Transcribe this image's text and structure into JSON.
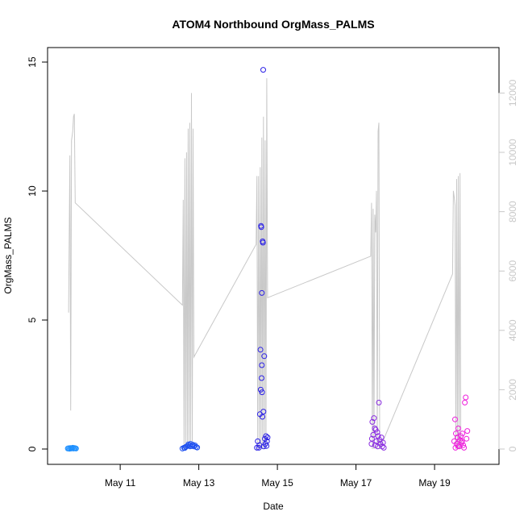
{
  "chart_data": {
    "type": "scatter",
    "title": "ATOM4 Northbound OrgMass_PALMS",
    "xlabel": "Date",
    "ylabel": "OrgMass_PALMS",
    "xlim": [
      "2018-05-09 12:00",
      "2018-05-20 06:00"
    ],
    "ylim": [
      0,
      15
    ],
    "y2lim": [
      0,
      12500
    ],
    "x_ticks": [
      {
        "value": "2018-05-11",
        "label": "May 11"
      },
      {
        "value": "2018-05-13",
        "label": "May 13"
      },
      {
        "value": "2018-05-15",
        "label": "May 15"
      },
      {
        "value": "2018-05-17",
        "label": "May 17"
      },
      {
        "value": "2018-05-19",
        "label": "May 19"
      }
    ],
    "y_ticks": [
      0,
      5,
      10,
      15
    ],
    "y2_ticks": [
      0,
      2000,
      4000,
      6000,
      8000,
      10000,
      12000
    ],
    "grid": false,
    "colors": {
      "secondary_line": "#c8c8c8",
      "flight_1": "#1e90ff",
      "flight_2": "#1c4ff0",
      "flight_3": "#2a1fe6",
      "flight_4": "#8a2be2",
      "flight_5": "#ee1fdc"
    },
    "series": [
      {
        "type": "points",
        "color_key": "flight_1",
        "points": [
          [
            "2018-05-09 16:00",
            0.02
          ],
          [
            "2018-05-09 16:30",
            0.03
          ],
          [
            "2018-05-09 17:00",
            0.01
          ],
          [
            "2018-05-09 17:30",
            0.04
          ],
          [
            "2018-05-09 18:00",
            0.02
          ],
          [
            "2018-05-09 18:30",
            0.03
          ],
          [
            "2018-05-09 19:00",
            0.05
          ],
          [
            "2018-05-09 19:30",
            0.02
          ],
          [
            "2018-05-09 20:00",
            0.04
          ],
          [
            "2018-05-09 20:30",
            0.03
          ],
          [
            "2018-05-09 21:00",
            0.02
          ]
        ]
      },
      {
        "type": "points",
        "color_key": "flight_2",
        "points": [
          [
            "2018-05-12 14:00",
            0.02
          ],
          [
            "2018-05-12 15:00",
            0.05
          ],
          [
            "2018-05-12 16:00",
            0.08
          ],
          [
            "2018-05-12 17:00",
            0.12
          ],
          [
            "2018-05-12 17:40",
            0.18
          ],
          [
            "2018-05-12 18:20",
            0.15
          ],
          [
            "2018-05-12 19:00",
            0.2
          ],
          [
            "2018-05-12 19:40",
            0.12
          ],
          [
            "2018-05-12 20:20",
            0.17
          ],
          [
            "2018-05-12 21:00",
            0.1
          ],
          [
            "2018-05-12 21:40",
            0.14
          ],
          [
            "2018-05-12 22:20",
            0.08
          ],
          [
            "2018-05-12 23:00",
            0.06
          ],
          [
            "2018-05-12 15:30",
            0.04
          ],
          [
            "2018-05-12 18:40",
            0.1
          ]
        ]
      },
      {
        "type": "points",
        "color_key": "flight_3",
        "points": [
          [
            "2018-05-14 12:00",
            0.3
          ],
          [
            "2018-05-14 12:40",
            0.05
          ],
          [
            "2018-05-14 13:20",
            1.35
          ],
          [
            "2018-05-14 13:40",
            3.85
          ],
          [
            "2018-05-14 13:50",
            2.3
          ],
          [
            "2018-05-14 14:00",
            8.65
          ],
          [
            "2018-05-14 14:10",
            8.6
          ],
          [
            "2018-05-14 14:20",
            2.75
          ],
          [
            "2018-05-14 14:30",
            3.25
          ],
          [
            "2018-05-14 14:30",
            6.05
          ],
          [
            "2018-05-14 14:40",
            2.2
          ],
          [
            "2018-05-14 14:50",
            1.25
          ],
          [
            "2018-05-14 15:00",
            8.05
          ],
          [
            "2018-05-14 15:10",
            8.0
          ],
          [
            "2018-05-14 15:20",
            14.7
          ],
          [
            "2018-05-14 15:30",
            1.45
          ],
          [
            "2018-05-14 16:00",
            3.6
          ],
          [
            "2018-05-14 16:20",
            0.4
          ],
          [
            "2018-05-14 17:00",
            0.5
          ],
          [
            "2018-05-14 17:40",
            0.3
          ],
          [
            "2018-05-14 18:00",
            0.45
          ],
          [
            "2018-05-14 13:00",
            0.15
          ],
          [
            "2018-05-14 15:40",
            0.1
          ],
          [
            "2018-05-14 16:40",
            0.2
          ],
          [
            "2018-05-14 11:30",
            0.05
          ],
          [
            "2018-05-14 17:20",
            0.12
          ]
        ]
      },
      {
        "type": "points",
        "color_key": "flight_4",
        "points": [
          [
            "2018-05-17 09:30",
            0.2
          ],
          [
            "2018-05-17 10:00",
            1.05
          ],
          [
            "2018-05-17 10:30",
            0.55
          ],
          [
            "2018-05-17 11:00",
            1.2
          ],
          [
            "2018-05-17 11:30",
            0.8
          ],
          [
            "2018-05-17 12:00",
            0.75
          ],
          [
            "2018-05-17 12:30",
            0.3
          ],
          [
            "2018-05-17 13:00",
            0.65
          ],
          [
            "2018-05-17 13:30",
            0.5
          ],
          [
            "2018-05-17 14:00",
            1.8
          ],
          [
            "2018-05-17 14:30",
            0.35
          ],
          [
            "2018-05-17 15:00",
            0.2
          ],
          [
            "2018-05-17 15:30",
            0.45
          ],
          [
            "2018-05-17 16:00",
            0.1
          ],
          [
            "2018-05-17 16:30",
            0.25
          ],
          [
            "2018-05-17 17:00",
            0.05
          ],
          [
            "2018-05-17 09:45",
            0.4
          ],
          [
            "2018-05-17 11:45",
            0.15
          ],
          [
            "2018-05-17 13:15",
            0.1
          ]
        ]
      },
      {
        "type": "points",
        "color_key": "flight_5",
        "points": [
          [
            "2018-05-19 12:00",
            0.3
          ],
          [
            "2018-05-19 12:30",
            1.15
          ],
          [
            "2018-05-19 13:00",
            0.6
          ],
          [
            "2018-05-19 13:30",
            0.2
          ],
          [
            "2018-05-19 14:00",
            0.45
          ],
          [
            "2018-05-19 14:30",
            0.8
          ],
          [
            "2018-05-19 15:00",
            0.1
          ],
          [
            "2018-05-19 15:30",
            0.35
          ],
          [
            "2018-05-19 16:00",
            0.5
          ],
          [
            "2018-05-19 16:30",
            0.25
          ],
          [
            "2018-05-19 17:00",
            0.6
          ],
          [
            "2018-05-19 17:30",
            0.15
          ],
          [
            "2018-05-19 18:00",
            0.05
          ],
          [
            "2018-05-19 18:30",
            1.8
          ],
          [
            "2018-05-19 19:00",
            2.0
          ],
          [
            "2018-05-19 19:30",
            0.4
          ],
          [
            "2018-05-19 20:00",
            0.7
          ],
          [
            "2018-05-19 12:45",
            0.05
          ],
          [
            "2018-05-19 14:15",
            0.12
          ],
          [
            "2018-05-19 16:45",
            0.3
          ]
        ]
      },
      {
        "type": "line",
        "axis": "right",
        "color_key": "secondary_line",
        "points": [
          [
            "2018-05-09 16:30",
            4600
          ],
          [
            "2018-05-09 17:15",
            9900
          ],
          [
            "2018-05-09 17:45",
            1300
          ],
          [
            "2018-05-09 18:15",
            10400
          ],
          [
            "2018-05-09 19:00",
            10700
          ],
          [
            "2018-05-09 19:30",
            11200
          ],
          [
            "2018-05-09 20:00",
            11300
          ],
          [
            "2018-05-09 20:30",
            8300
          ],
          [
            "2018-05-12 14:00",
            4850
          ],
          [
            "2018-05-12 14:30",
            8400
          ],
          [
            "2018-05-12 15:00",
            0
          ],
          [
            "2018-05-12 15:30",
            9800
          ],
          [
            "2018-05-12 16:00",
            0
          ],
          [
            "2018-05-12 16:30",
            10000
          ],
          [
            "2018-05-12 17:00",
            0
          ],
          [
            "2018-05-12 17:30",
            10800
          ],
          [
            "2018-05-12 18:00",
            0
          ],
          [
            "2018-05-12 18:30",
            11000
          ],
          [
            "2018-05-12 19:00",
            0
          ],
          [
            "2018-05-12 19:30",
            12000
          ],
          [
            "2018-05-12 20:00",
            0
          ],
          [
            "2018-05-12 20:30",
            10800
          ],
          [
            "2018-05-12 21:00",
            3100
          ],
          [
            "2018-05-14 11:00",
            6900
          ],
          [
            "2018-05-14 11:30",
            9200
          ],
          [
            "2018-05-14 12:00",
            0
          ],
          [
            "2018-05-14 12:30",
            9200
          ],
          [
            "2018-05-14 13:00",
            0
          ],
          [
            "2018-05-14 13:30",
            9500
          ],
          [
            "2018-05-14 14:00",
            0
          ],
          [
            "2018-05-14 14:30",
            10500
          ],
          [
            "2018-05-14 15:00",
            0
          ],
          [
            "2018-05-14 15:30",
            11200
          ],
          [
            "2018-05-14 16:00",
            0
          ],
          [
            "2018-05-14 16:30",
            10400
          ],
          [
            "2018-05-14 17:00",
            0
          ],
          [
            "2018-05-14 17:30",
            12500
          ],
          [
            "2018-05-14 18:00",
            5100
          ],
          [
            "2018-05-17 09:00",
            6500
          ],
          [
            "2018-05-17 09:30",
            8300
          ],
          [
            "2018-05-17 10:00",
            0
          ],
          [
            "2018-05-17 10:30",
            8100
          ],
          [
            "2018-05-17 11:00",
            0
          ],
          [
            "2018-05-17 11:30",
            7900
          ],
          [
            "2018-05-17 12:00",
            7300
          ],
          [
            "2018-05-17 12:30",
            8700
          ],
          [
            "2018-05-17 13:00",
            0
          ],
          [
            "2018-05-17 13:30",
            10700
          ],
          [
            "2018-05-17 14:00",
            11000
          ],
          [
            "2018-05-17 14:30",
            0
          ],
          [
            "2018-05-19 11:00",
            5900
          ],
          [
            "2018-05-19 11:30",
            8700
          ],
          [
            "2018-05-19 12:00",
            8500
          ],
          [
            "2018-05-19 12:30",
            8200
          ],
          [
            "2018-05-19 13:00",
            0
          ],
          [
            "2018-05-19 13:30",
            9100
          ],
          [
            "2018-05-19 14:00",
            0
          ],
          [
            "2018-05-19 14:30",
            9200
          ],
          [
            "2018-05-19 15:00",
            0
          ],
          [
            "2018-05-19 15:30",
            9300
          ],
          [
            "2018-05-19 16:00",
            0
          ]
        ]
      }
    ]
  }
}
